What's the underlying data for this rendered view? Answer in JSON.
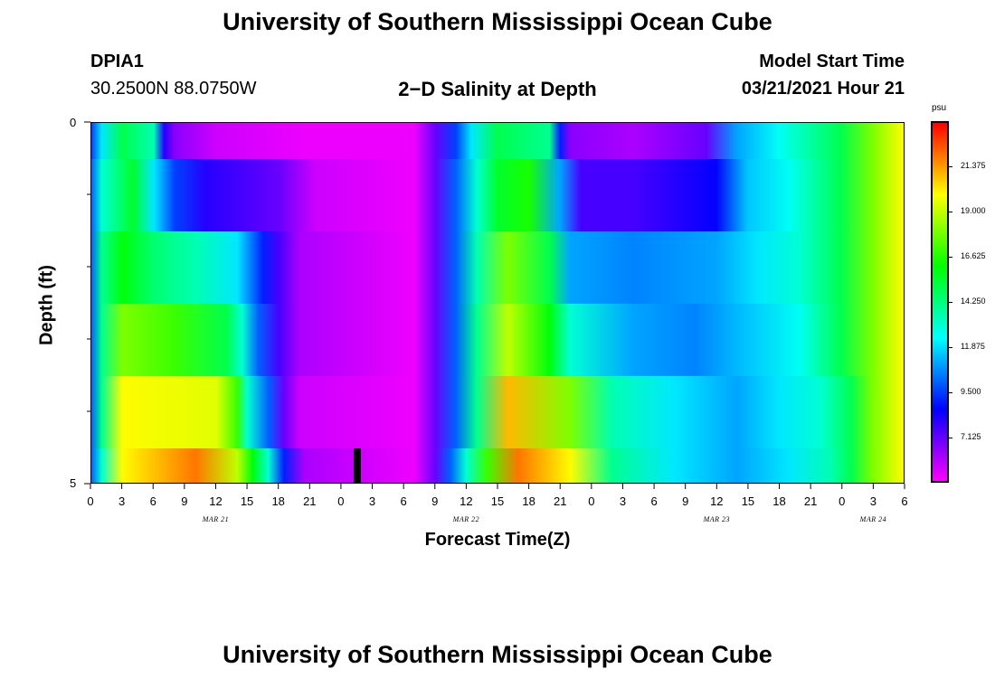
{
  "titles": {
    "top": "University of Southern Mississippi Ocean Cube",
    "bottom": "University of Southern Mississippi Ocean Cube"
  },
  "station": {
    "id": "DPIA1",
    "coords": "30.2500N 88.0750W"
  },
  "model": {
    "start_label": "Model Start Time",
    "start_value": "03/21/2021 Hour 21"
  },
  "chart_data": {
    "type": "heatmap",
    "title": "2−D Salinity at Depth",
    "xlabel": "Forecast Time(Z)",
    "ylabel": "Depth (ft)",
    "colorbar_unit": "psu",
    "colorbar_ticks": [
      "21.375",
      "19.000",
      "16.625",
      "14.250",
      "11.875",
      "9.500",
      "7.125"
    ],
    "colorbar_range": [
      4.75,
      23.75
    ],
    "x_tick_labels": [
      "0",
      "3",
      "6",
      "9",
      "12",
      "15",
      "18",
      "21",
      "0",
      "3",
      "6",
      "9",
      "12",
      "15",
      "18",
      "21",
      "0",
      "3",
      "6",
      "9",
      "12",
      "15",
      "18",
      "21",
      "0",
      "3",
      "6"
    ],
    "x_range_hours": [
      0,
      78
    ],
    "month_labels": [
      {
        "text": "MAR 21",
        "hour": 12
      },
      {
        "text": "MAR 22",
        "hour": 36
      },
      {
        "text": "MAR 23",
        "hour": 60
      },
      {
        "text": "MAR 24",
        "hour": 75
      }
    ],
    "y_tick_labels": [
      "0",
      "5"
    ],
    "y_range": [
      0,
      5
    ],
    "now_marker_hour": 25.5,
    "depth_bands": [
      {
        "depth_top": 0,
        "depth_bottom": 0.5,
        "stops": [
          [
            0,
            9.5
          ],
          [
            1,
            12
          ],
          [
            3,
            15
          ],
          [
            6,
            13.5
          ],
          [
            7,
            8
          ],
          [
            8,
            6.5
          ],
          [
            12,
            5.5
          ],
          [
            21,
            5
          ],
          [
            31,
            5
          ],
          [
            33,
            7
          ],
          [
            35,
            9.5
          ],
          [
            36.5,
            12
          ],
          [
            39,
            15
          ],
          [
            44,
            14
          ],
          [
            45,
            9
          ],
          [
            46,
            6.5
          ],
          [
            52,
            6
          ],
          [
            59,
            7
          ],
          [
            62,
            11
          ],
          [
            66,
            12.5
          ],
          [
            72,
            15
          ],
          [
            75,
            18
          ],
          [
            78,
            20
          ]
        ]
      },
      {
        "depth_top": 0.5,
        "depth_bottom": 1.5,
        "stops": [
          [
            0,
            10
          ],
          [
            1,
            13
          ],
          [
            4,
            15.5
          ],
          [
            6,
            12
          ],
          [
            8,
            9.5
          ],
          [
            11,
            8
          ],
          [
            18,
            7
          ],
          [
            21.5,
            5.5
          ],
          [
            31,
            5
          ],
          [
            33,
            7
          ],
          [
            35,
            10
          ],
          [
            37,
            13
          ],
          [
            39,
            15.5
          ],
          [
            42,
            16.5
          ],
          [
            45,
            11
          ],
          [
            47,
            7.5
          ],
          [
            52,
            7.5
          ],
          [
            60,
            8.5
          ],
          [
            63,
            11.5
          ],
          [
            67,
            12.5
          ],
          [
            72,
            15
          ],
          [
            75,
            18
          ],
          [
            78,
            20
          ]
        ]
      },
      {
        "depth_top": 1.5,
        "depth_bottom": 2.5,
        "stops": [
          [
            0,
            10
          ],
          [
            1,
            14
          ],
          [
            3,
            16
          ],
          [
            6,
            14.5
          ],
          [
            10,
            13.5
          ],
          [
            14,
            12
          ],
          [
            16.5,
            9
          ],
          [
            18,
            7.5
          ],
          [
            20,
            6
          ],
          [
            31,
            5
          ],
          [
            33,
            7
          ],
          [
            35,
            10
          ],
          [
            37,
            13.5
          ],
          [
            40,
            18
          ],
          [
            44,
            15
          ],
          [
            46,
            11
          ],
          [
            52,
            10.5
          ],
          [
            60,
            11
          ],
          [
            64,
            12
          ],
          [
            68,
            13
          ],
          [
            72,
            15
          ],
          [
            75,
            18
          ],
          [
            78,
            20
          ]
        ]
      },
      {
        "depth_top": 2.5,
        "depth_bottom": 3.5,
        "stops": [
          [
            0,
            10
          ],
          [
            1,
            14
          ],
          [
            3,
            18
          ],
          [
            8,
            17
          ],
          [
            13,
            15
          ],
          [
            14.5,
            13
          ],
          [
            16,
            10
          ],
          [
            18,
            7.5
          ],
          [
            20,
            6
          ],
          [
            31,
            5
          ],
          [
            33,
            7
          ],
          [
            35,
            10
          ],
          [
            37,
            14
          ],
          [
            40,
            19
          ],
          [
            44,
            16
          ],
          [
            46,
            13
          ],
          [
            52,
            11
          ],
          [
            58,
            10.5
          ],
          [
            63,
            11.5
          ],
          [
            68,
            12.5
          ],
          [
            72,
            15
          ],
          [
            75,
            18
          ],
          [
            78,
            20
          ]
        ]
      },
      {
        "depth_top": 3.5,
        "depth_bottom": 4.5,
        "stops": [
          [
            0,
            10
          ],
          [
            1,
            14
          ],
          [
            3,
            20
          ],
          [
            12,
            19.5
          ],
          [
            14,
            17
          ],
          [
            15,
            13
          ],
          [
            17,
            10
          ],
          [
            18.5,
            7
          ],
          [
            20,
            5.5
          ],
          [
            31,
            5
          ],
          [
            33,
            7
          ],
          [
            35,
            10
          ],
          [
            37,
            14
          ],
          [
            40,
            21
          ],
          [
            46,
            18
          ],
          [
            50,
            13.5
          ],
          [
            56,
            12
          ],
          [
            62,
            11
          ],
          [
            66,
            12
          ],
          [
            70,
            13
          ],
          [
            73,
            15
          ],
          [
            75,
            18
          ],
          [
            78,
            20
          ]
        ]
      },
      {
        "depth_top": 4.5,
        "depth_bottom": 5,
        "stops": [
          [
            0,
            10
          ],
          [
            1,
            13
          ],
          [
            3,
            20
          ],
          [
            10,
            22
          ],
          [
            14,
            19
          ],
          [
            15.5,
            16
          ],
          [
            17,
            13
          ],
          [
            18.5,
            9
          ],
          [
            20.5,
            6
          ],
          [
            31,
            5
          ],
          [
            33,
            7
          ],
          [
            34.5,
            10
          ],
          [
            36,
            13
          ],
          [
            38,
            17
          ],
          [
            41,
            22
          ],
          [
            46,
            20
          ],
          [
            50,
            14
          ],
          [
            56,
            12
          ],
          [
            62,
            11
          ],
          [
            67,
            12
          ],
          [
            71,
            13.5
          ],
          [
            73,
            15
          ],
          [
            75,
            18
          ],
          [
            78,
            20
          ]
        ]
      }
    ]
  }
}
